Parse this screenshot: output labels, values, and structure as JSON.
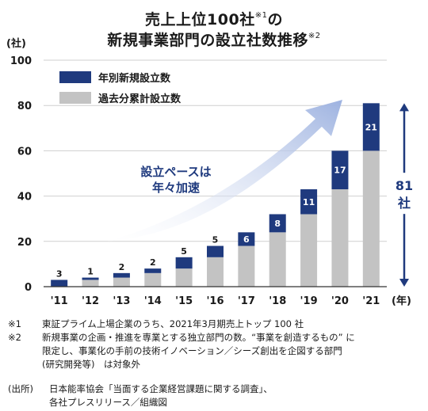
{
  "title": {
    "line1": "売上上位100社",
    "line1_sup": "※1",
    "line1_tail": "の",
    "line2": "新規事業部門の設立社数推移",
    "line2_sup": "※2"
  },
  "chart_data": {
    "type": "bar",
    "stacked": true,
    "categories": [
      "'11",
      "'12",
      "'13",
      "'14",
      "'15",
      "'16",
      "'17",
      "'18",
      "'19",
      "'20",
      "'21"
    ],
    "series": [
      {
        "name": "過去分累計設立数",
        "color": "#c3c3c3",
        "values": [
          0,
          3,
          4,
          6,
          8,
          13,
          18,
          24,
          32,
          43,
          60
        ]
      },
      {
        "name": "年別新規設立数",
        "color": "#1f3a7e",
        "values": [
          3,
          1,
          2,
          2,
          5,
          5,
          6,
          8,
          11,
          17,
          21
        ]
      }
    ],
    "data_labels": [
      "3",
      "1",
      "2",
      "2",
      "5",
      "5",
      "6",
      "8",
      "11",
      "17",
      "21"
    ],
    "ylim": [
      0,
      100
    ],
    "yticks": [
      0,
      20,
      40,
      60,
      80,
      100
    ],
    "ylabel": "(社)",
    "xlabel": "(年)",
    "legend_position": "top-left",
    "annotation_arrow": "設立ペースは\n年々加速",
    "range_total": {
      "value": "81",
      "unit": "社",
      "from": 0,
      "to": 81
    }
  },
  "colors": {
    "navy": "#1f3a7e",
    "gray": "#c3c3c3",
    "arrow": "#aec0e6"
  },
  "notes": [
    {
      "mark": "※1",
      "lines": [
        "東証プライム上場企業のうち、2021年3月期売上トップ 100 社"
      ]
    },
    {
      "mark": "※2",
      "lines": [
        "新規事業の企画・推進を専業とする独立部門の数。“事業を創造するもの” に",
        "限定し、事業化の手前の技術イノベーション／シーズ創出を企図する部門",
        "(研究開発等)　は対象外"
      ]
    }
  ],
  "source": {
    "mark": "(出所)",
    "lines": [
      "日本能率協会「当面する企業経営課題に関する調査」、",
      "各社プレスリリース／組織図"
    ]
  }
}
